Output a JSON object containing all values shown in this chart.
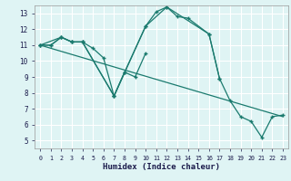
{
  "xlabel": "Humidex (Indice chaleur)",
  "background_color": "#dff4f4",
  "grid_color": "#ffffff",
  "line_color": "#1a7a6e",
  "xlim": [
    -0.5,
    23.5
  ],
  "ylim": [
    4.5,
    13.5
  ],
  "xticks": [
    0,
    1,
    2,
    3,
    4,
    5,
    6,
    7,
    8,
    9,
    10,
    11,
    12,
    13,
    14,
    15,
    16,
    17,
    18,
    19,
    20,
    21,
    22,
    23
  ],
  "yticks": [
    5,
    6,
    7,
    8,
    9,
    10,
    11,
    12,
    13
  ],
  "series1_x": [
    0,
    1,
    2,
    3,
    4,
    7,
    8,
    10,
    11,
    12,
    13,
    14,
    16,
    17
  ],
  "series1_y": [
    11.0,
    11.0,
    11.5,
    11.2,
    11.2,
    7.8,
    9.3,
    12.2,
    13.1,
    13.4,
    12.8,
    12.7,
    11.7,
    8.9
  ],
  "series2_x": [
    0,
    1,
    2,
    3,
    4,
    5,
    6,
    7,
    8,
    9,
    10
  ],
  "series2_y": [
    11.0,
    11.0,
    11.5,
    11.2,
    11.2,
    10.8,
    10.2,
    7.8,
    9.3,
    9.0,
    10.5
  ],
  "series3_x": [
    0,
    2,
    3,
    4,
    7,
    10,
    12,
    16,
    17,
    18,
    19,
    20,
    21,
    22,
    23
  ],
  "series3_y": [
    11.0,
    11.5,
    11.2,
    11.2,
    7.8,
    12.2,
    13.4,
    11.7,
    8.9,
    7.5,
    6.5,
    6.2,
    5.2,
    6.5,
    6.6
  ],
  "series4_x": [
    0,
    23
  ],
  "series4_y": [
    11.0,
    6.5
  ]
}
